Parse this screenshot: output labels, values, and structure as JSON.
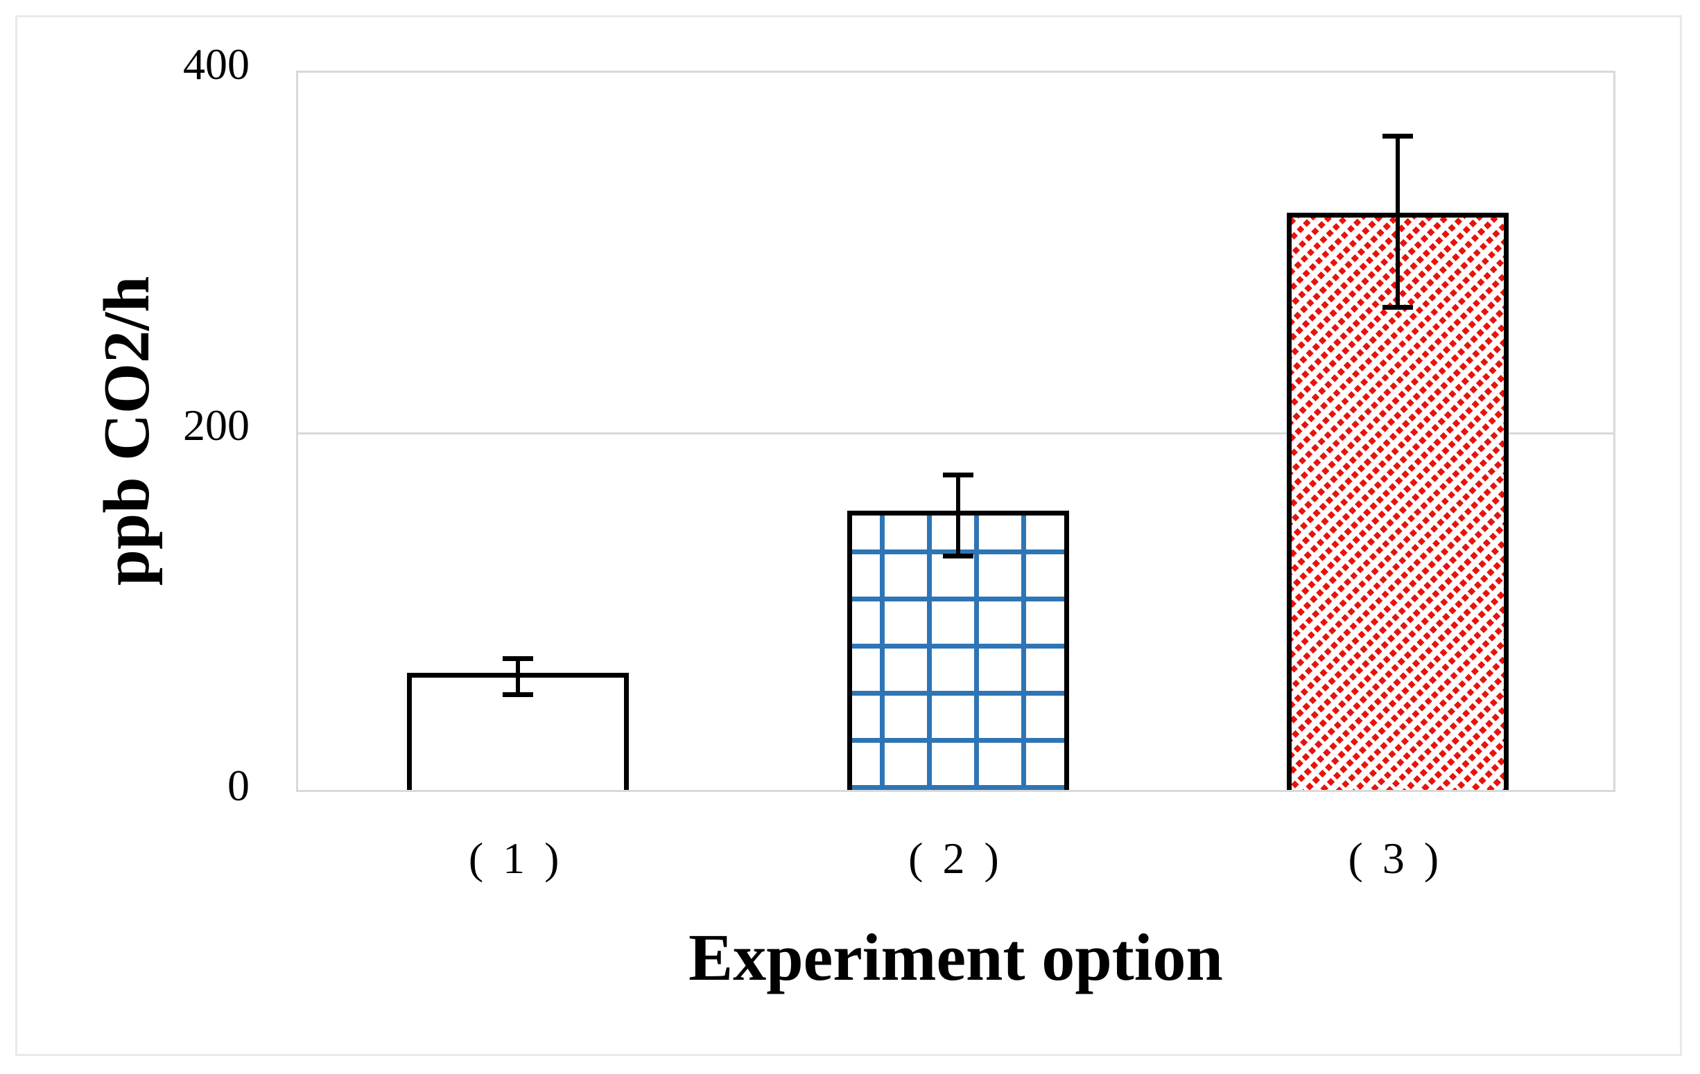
{
  "figure": {
    "background": "#ffffff",
    "frame_color": "#E9E9E9"
  },
  "chart_data": {
    "type": "bar",
    "title": "",
    "xlabel": "Experiment option",
    "ylabel": "ppb CO2/h",
    "categories": [
      "( 1 )",
      "( 2 )",
      "( 3 )"
    ],
    "values": [
      65,
      155,
      320
    ],
    "error_plus": [
      10,
      22,
      45
    ],
    "error_minus": [
      10,
      23,
      50
    ],
    "yticks": [
      0,
      200,
      400
    ],
    "ylim": [
      0,
      400
    ],
    "grid": "horizontal",
    "gridline_values": [
      200
    ],
    "legend_position": "none",
    "bar_fills": [
      {
        "style": "solid",
        "fill": "#ffffff",
        "border": "#000000",
        "description": "plain white"
      },
      {
        "style": "grid-pattern",
        "pattern_color": "#2E75B6",
        "border": "#000000",
        "description": "blue square grid hatch"
      },
      {
        "style": "diagonal-dash-pattern",
        "pattern_color": "#E8130D",
        "border": "#000000",
        "description": "red dashed upward diagonal hatch"
      }
    ],
    "colors": {
      "axis": "#D9D9D9",
      "gridline": "#D9D9D9",
      "error_bar": "#000000",
      "text": "#000000"
    }
  }
}
